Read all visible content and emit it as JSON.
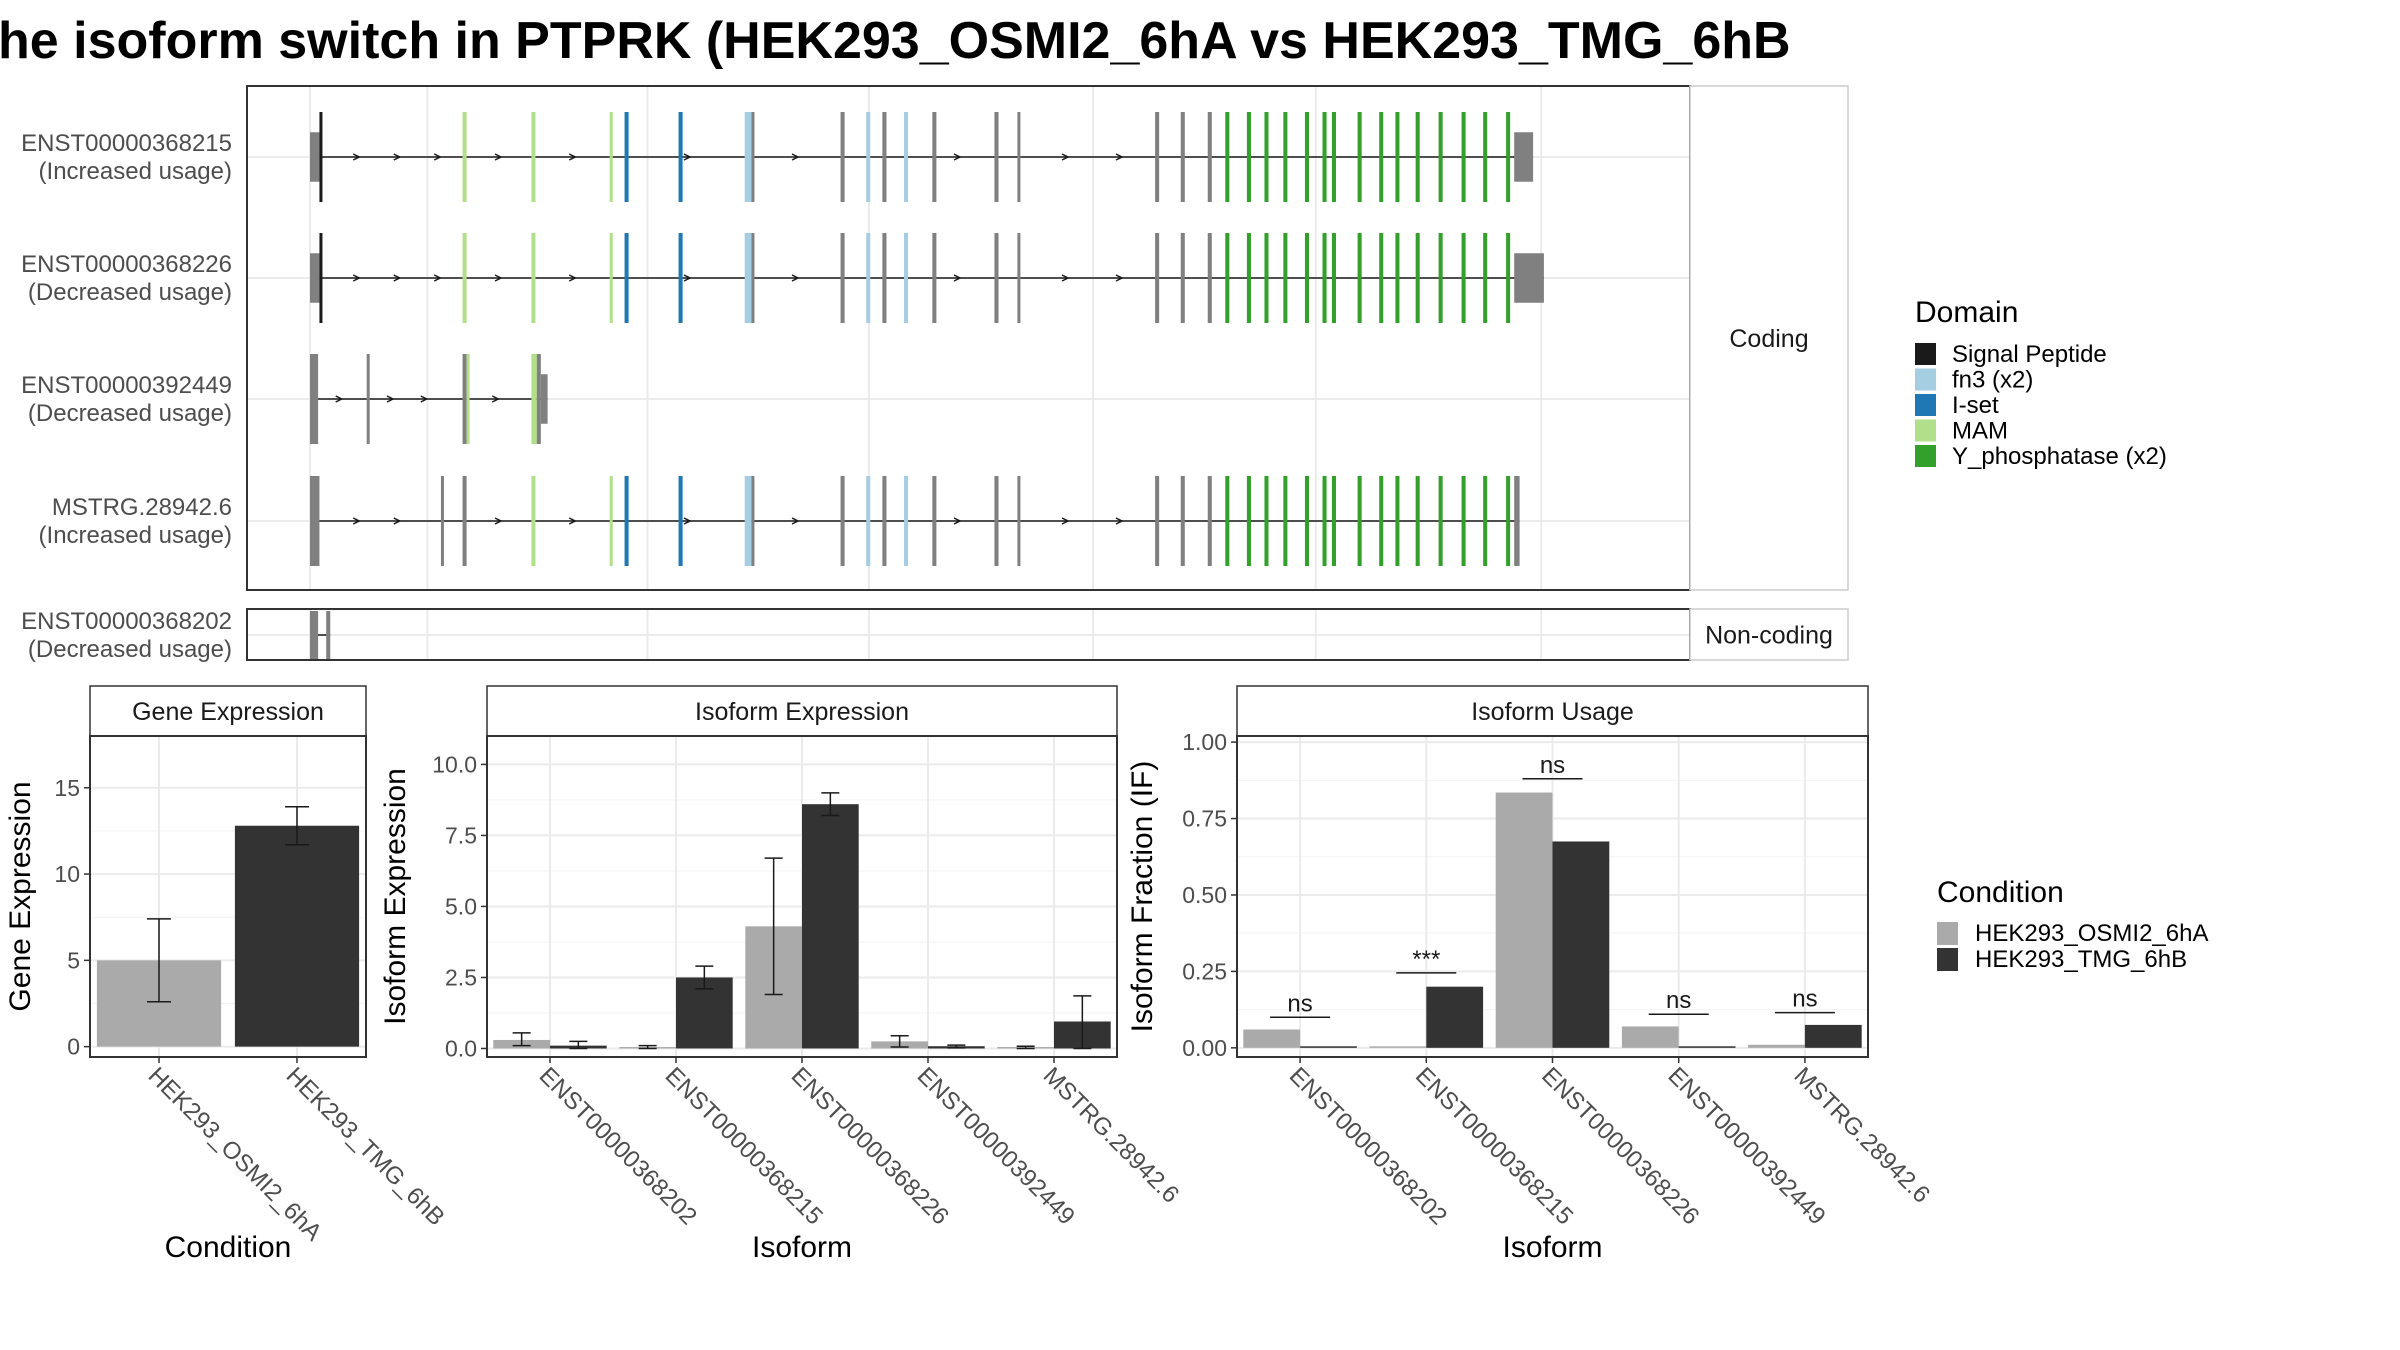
{
  "title": "he isoform switch in PTPRK (HEK293_OSMI2_6hA vs HEK293_TMG_6hB",
  "colors": {
    "signal_peptide": "#1a1a1a",
    "fn3": "#a6cee3",
    "iset": "#1f78b4",
    "mam": "#b2df8a",
    "yphos": "#33a02c",
    "exon": "#808080",
    "cond_a": "#aaaaaa",
    "cond_b": "#333333",
    "grid": "#ebebeb",
    "frame": "#333333"
  },
  "structure": {
    "genome_range": [
      0,
      100
    ],
    "facets": [
      {
        "label": "Coding",
        "transcripts": [
          {
            "id": "ENST00000368215",
            "usage": "(Increased usage)",
            "tall_frac": 0.7,
            "coding_start": 0.7,
            "coding_end": 89.6,
            "span": [
              0.0,
              90.6
            ]
          },
          {
            "id": "ENST00000368226",
            "usage": "(Decreased usage)",
            "tall_frac": 0.7,
            "coding_start": 0.7,
            "coding_end": 89.6,
            "span": [
              0.0,
              91.4
            ]
          },
          {
            "id": "ENST00000392449",
            "usage": "(Decreased usage)",
            "tall_frac": 0.7,
            "coding_start": 0.0,
            "coding_end": 24.0,
            "span": [
              0.0,
              25.0
            ]
          },
          {
            "id": "MSTRG.28942.6",
            "usage": "(Increased usage)",
            "tall_frac": 0.7,
            "coding_start": 0.0,
            "coding_end": 89.6,
            "span": [
              0.0,
              90.0
            ]
          }
        ]
      },
      {
        "label": "Non-coding",
        "transcripts": [
          {
            "id": "ENST00000368202",
            "usage": "(Decreased usage)",
            "tall_frac": 0.7,
            "coding_start": null,
            "coding_end": null,
            "span": [
              0.0,
              1.8
            ]
          }
        ]
      }
    ],
    "legend_title": "Domain",
    "domains": [
      {
        "name": "Signal Peptide",
        "key": "signal_peptide"
      },
      {
        "name": "fn3 (x2)",
        "key": "fn3"
      },
      {
        "name": "I-set",
        "key": "iset"
      },
      {
        "name": "MAM",
        "key": "mam"
      },
      {
        "name": "Y_phosphatase (x2)",
        "key": "yphos"
      }
    ]
  },
  "chart_data": [
    {
      "type": "bar",
      "title": "Gene Expression",
      "xlabel": "Condition",
      "ylabel": "Gene Expression",
      "categories": [
        "HEK293_OSMI2_6hA",
        "HEK293_TMG_6hB"
      ],
      "values": [
        5.0,
        12.8
      ],
      "error": [
        [
          2.6,
          7.4
        ],
        [
          11.7,
          13.9
        ]
      ],
      "ylim": [
        -0.6,
        18.0
      ],
      "yticks": [
        "0",
        "5",
        "10",
        "15"
      ],
      "grid": true
    },
    {
      "type": "bar",
      "title": "Isoform Expression",
      "xlabel": "Isoform",
      "ylabel": "Isoform Expression",
      "categories": [
        "ENST00000368202",
        "ENST00000368215",
        "ENST00000368226",
        "ENST00000392449",
        "MSTRG.28942.6"
      ],
      "series": [
        {
          "name": "HEK293_OSMI2_6hA",
          "values": [
            0.3,
            0.05,
            4.3,
            0.25,
            0.05
          ],
          "error": [
            [
              0.1,
              0.55
            ],
            [
              0.0,
              0.1
            ],
            [
              1.9,
              6.7
            ],
            [
              0.05,
              0.45
            ],
            [
              0.0,
              0.08
            ]
          ]
        },
        {
          "name": "HEK293_TMG_6hB",
          "values": [
            0.1,
            2.5,
            8.6,
            0.08,
            0.95
          ],
          "error": [
            [
              0.0,
              0.25
            ],
            [
              2.1,
              2.9
            ],
            [
              8.2,
              9.0
            ],
            [
              0.02,
              0.12
            ],
            [
              0.0,
              1.85
            ]
          ]
        }
      ],
      "ylim": [
        -0.3,
        11.0
      ],
      "yticks": [
        "0.0",
        "2.5",
        "5.0",
        "7.5",
        "10.0"
      ],
      "grid": true
    },
    {
      "type": "bar",
      "title": "Isoform Usage",
      "xlabel": "Isoform",
      "ylabel": "Isoform Fraction (IF)",
      "categories": [
        "ENST00000368202",
        "ENST00000368215",
        "ENST00000368226",
        "ENST00000392449",
        "MSTRG.28942.6"
      ],
      "series": [
        {
          "name": "HEK293_OSMI2_6hA",
          "values": [
            0.06,
            0.005,
            0.835,
            0.07,
            0.01
          ]
        },
        {
          "name": "HEK293_TMG_6hB",
          "values": [
            0.005,
            0.2,
            0.675,
            0.005,
            0.075
          ]
        }
      ],
      "significance": [
        {
          "label": "ns",
          "level": 0.1
        },
        {
          "label": "***",
          "level": 0.245
        },
        {
          "label": "ns",
          "level": 0.88
        },
        {
          "label": "ns",
          "level": 0.11
        },
        {
          "label": "ns",
          "level": 0.115
        }
      ],
      "ylim": [
        -0.03,
        1.02
      ],
      "yticks": [
        "0.00",
        "0.25",
        "0.50",
        "0.75",
        "1.00"
      ],
      "grid": true
    }
  ],
  "condition_legend": {
    "title": "Condition",
    "entries": [
      "HEK293_OSMI2_6hA",
      "HEK293_TMG_6hB"
    ]
  }
}
